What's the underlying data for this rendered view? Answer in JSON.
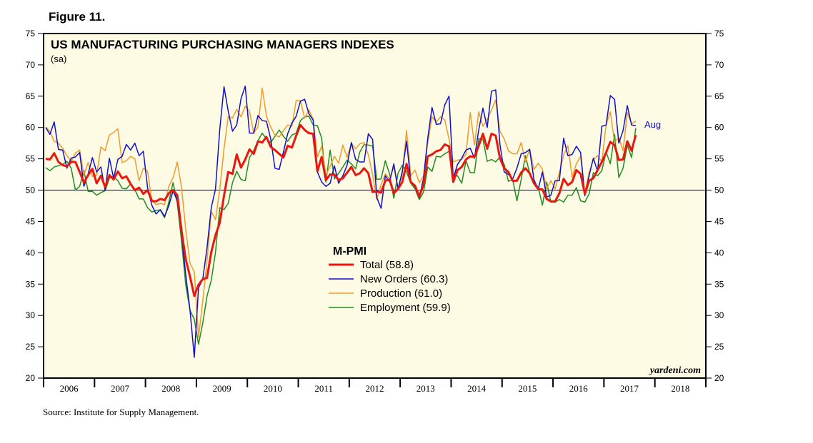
{
  "figure_label": "Figure 11.",
  "source": "Source: Institute for Supply Management.",
  "colors": {
    "plot_bg": "#fdfbe3",
    "total": "#e8170f",
    "new_orders": "#1111cc",
    "production": "#f29a2e",
    "employment": "#228b22",
    "ref_line": "#000000"
  },
  "chart_data": {
    "type": "line",
    "title": "US MANUFACTURING PURCHASING MANAGERS INDEXES",
    "subtitle": "(sa)",
    "credit": "yardeni.com",
    "end_label": "Aug",
    "legend": {
      "title": "M-PMI",
      "placement": "center"
    },
    "x_start": "2006-01",
    "x_end": "2018-12",
    "ylim": [
      20,
      75
    ],
    "yticks": [
      20,
      25,
      30,
      35,
      40,
      45,
      50,
      55,
      60,
      65,
      70,
      75
    ],
    "year_labels": [
      "2006",
      "2007",
      "2008",
      "2009",
      "2010",
      "2011",
      "2012",
      "2013",
      "2014",
      "2015",
      "2016",
      "2017",
      "2018"
    ],
    "reference_line": 50,
    "grid": false,
    "series": [
      {
        "name": "Total",
        "label": "Total (58.8)",
        "color": "#e8170f",
        "width": 3,
        "values": [
          55.0,
          54.9,
          55.9,
          54.5,
          54.0,
          53.8,
          54.5,
          54.5,
          52.9,
          51.2,
          52.4,
          53.4,
          51.1,
          52.3,
          50.5,
          52.4,
          51.7,
          53.0,
          51.9,
          52.2,
          51.0,
          50.0,
          50.4,
          49.4,
          50.0,
          48.3,
          48.2,
          48.6,
          48.4,
          49.5,
          50.0,
          49.2,
          43.5,
          38.9,
          36.2,
          33.1,
          34.9,
          35.8,
          36.0,
          40.1,
          42.8,
          44.8,
          49.1,
          52.9,
          52.6,
          55.7,
          53.6,
          54.9,
          56.5,
          55.8,
          57.8,
          57.6,
          58.5,
          56.9,
          56.4,
          55.8,
          55.2,
          57.1,
          56.8,
          58.7,
          60.4,
          59.6,
          59.1,
          59.0,
          53.0,
          55.3,
          51.6,
          52.5,
          52.5,
          51.6,
          51.9,
          52.8,
          53.7,
          52.4,
          52.7,
          53.5,
          52.7,
          49.7,
          49.8,
          49.6,
          51.5,
          51.7,
          49.5,
          50.2,
          51.3,
          54.2,
          51.3,
          50.7,
          49.0,
          50.9,
          55.4,
          55.7,
          56.2,
          56.4,
          57.3,
          57.0,
          51.3,
          53.2,
          53.7,
          54.9,
          55.4,
          55.3,
          57.1,
          59.0,
          56.6,
          59.0,
          58.7,
          55.1,
          53.5,
          52.9,
          51.5,
          51.5,
          52.8,
          53.5,
          52.7,
          51.1,
          50.2,
          50.1,
          48.6,
          48.2,
          48.2,
          49.5,
          51.8,
          50.8,
          51.3,
          53.2,
          52.6,
          49.4,
          51.5,
          51.9,
          53.2,
          54.5,
          56.0,
          57.7,
          57.2,
          54.8,
          54.9,
          57.8,
          56.3,
          58.8
        ]
      },
      {
        "name": "New Orders",
        "label": "New Orders (60.3)",
        "color": "#1111cc",
        "width": 1.5,
        "values": [
          60.0,
          58.9,
          60.9,
          56.5,
          56.4,
          53.5,
          55.1,
          55.3,
          56.0,
          50.6,
          52.6,
          55.2,
          52.9,
          53.7,
          50.0,
          55.1,
          51.9,
          54.9,
          55.4,
          57.3,
          56.4,
          57.5,
          55.5,
          56.2,
          50.4,
          47.6,
          46.2,
          46.9,
          45.8,
          47.5,
          49.9,
          48.3,
          42.9,
          36.4,
          30.8,
          23.3,
          34.4,
          35.8,
          40.8,
          47.2,
          50.2,
          59.7,
          66.5,
          62.6,
          59.4,
          60.4,
          64.6,
          66.6,
          59.1,
          59.1,
          61.9,
          61.1,
          61.0,
          58.2,
          53.5,
          53.3,
          56.1,
          59.0,
          60.7,
          61.8,
          64.2,
          64.5,
          62.2,
          61.2,
          52.9,
          51.3,
          50.6,
          51.1,
          53.9,
          51.1,
          52.3,
          54.0,
          57.6,
          54.9,
          54.5,
          54.5,
          59.0,
          58.1,
          48.8,
          47.1,
          52.3,
          51.3,
          54.2,
          50.2,
          53.0,
          57.8,
          51.4,
          50.5,
          48.8,
          51.9,
          58.3,
          63.2,
          60.5,
          60.6,
          63.6,
          65.0,
          51.9,
          54.1,
          55.1,
          56.4,
          56.7,
          55.1,
          59.6,
          63.1,
          60.0,
          65.8,
          66.0,
          57.3,
          52.9,
          52.5,
          51.8,
          53.5,
          55.8,
          56.0,
          56.5,
          51.7,
          50.1,
          52.9,
          48.9,
          49.2,
          51.5,
          51.5,
          58.3,
          55.5,
          55.7,
          57.0,
          56.0,
          49.1,
          52.3,
          55.1,
          53.0,
          60.2,
          60.4,
          65.1,
          64.5,
          57.5,
          59.5,
          63.5,
          60.4,
          60.3
        ]
      },
      {
        "name": "Production",
        "label": "Production (61.0)",
        "color": "#f29a2e",
        "width": 1.5,
        "values": [
          60.1,
          59.4,
          57.8,
          57.5,
          56.7,
          55.5,
          54.6,
          55.9,
          56.4,
          52.4,
          54.4,
          52.2,
          52.4,
          56.9,
          56.3,
          58.8,
          59.2,
          59.8,
          54.4,
          54.7,
          55.4,
          55.0,
          51.5,
          53.5,
          53.0,
          48.3,
          47.7,
          47.9,
          47.7,
          50.6,
          52.0,
          54.5,
          50.4,
          43.6,
          38.3,
          37.0,
          26.5,
          32.3,
          38.7,
          46.6,
          45.3,
          50.1,
          56.6,
          61.8,
          61.5,
          62.9,
          61.7,
          63.4,
          62.6,
          59.1,
          60.1,
          66.3,
          61.8,
          60.1,
          58.8,
          58.5,
          59.5,
          60.4,
          60.2,
          64.3,
          64.3,
          61.5,
          62.8,
          61.3,
          55.3,
          57.0,
          52.4,
          53.8,
          55.4,
          54.3,
          57.2,
          55.2,
          57.5,
          56.6,
          57.4,
          57.6,
          55.6,
          52.5,
          48.5,
          50.9,
          52.6,
          51.8,
          53.7,
          50.1,
          52.5,
          59.5,
          52.3,
          53.2,
          51.2,
          52.3,
          57.6,
          61.7,
          60.9,
          61.7,
          61.2,
          58.2,
          54.5,
          54.8,
          54.9,
          55.7,
          62.4,
          57.2,
          62.5,
          60.2,
          61.3,
          62.8,
          64.4,
          59.4,
          58.2,
          56.3,
          55.8,
          55.8,
          57.6,
          54.5,
          56.6,
          53.3,
          54.3,
          53.4,
          50.2,
          51.5,
          50.2,
          52.8,
          55.6,
          57.1,
          52.1,
          54.2,
          55.4,
          49.6,
          52.8,
          54.9,
          55.5,
          54.5,
          60.4,
          62.5,
          57.6,
          58.4,
          56.3,
          62.4,
          60.6,
          61.0
        ]
      },
      {
        "name": "Employment",
        "label": "Employment (59.9)",
        "color": "#228b22",
        "width": 1.5,
        "values": [
          53.6,
          53.1,
          53.7,
          53.9,
          54.1,
          54.6,
          53.5,
          50.0,
          50.6,
          53.1,
          49.8,
          49.8,
          49.2,
          49.6,
          49.9,
          51.9,
          52.2,
          51.5,
          50.3,
          50.2,
          51.0,
          50.1,
          48.6,
          48.6,
          47.2,
          46.5,
          46.8,
          46.8,
          45.6,
          48.1,
          51.2,
          47.9,
          41.8,
          34.8,
          30.8,
          29.4,
          25.4,
          28.8,
          33.1,
          35.6,
          40.1,
          47.2,
          46.9,
          47.9,
          51.2,
          53.0,
          51.7,
          51.5,
          55.2,
          56.3,
          57.9,
          59.1,
          58.2,
          57.6,
          58.6,
          59.6,
          58.6,
          57.8,
          58.8,
          59.1,
          61.1,
          61.7,
          61.8,
          60.4,
          60.3,
          58.3,
          51.3,
          56.4,
          51.8,
          52.7,
          53.7,
          54.8,
          54.2,
          53.4,
          56.1,
          57.3,
          57.2,
          57.0,
          51.7,
          51.8,
          54.7,
          52.6,
          48.7,
          52.7,
          54.0,
          52.9,
          51.1,
          50.2,
          48.5,
          49.7,
          53.7,
          53.0,
          55.4,
          55.3,
          55.8,
          56.2,
          52.3,
          52.3,
          51.1,
          54.7,
          52.8,
          52.8,
          58.2,
          58.1,
          54.6,
          54.9,
          54.5,
          55.3,
          54.1,
          51.4,
          51.7,
          48.3,
          51.7,
          55.5,
          52.7,
          51.2,
          50.5,
          47.6,
          51.3,
          48.1,
          48.1,
          48.5,
          48.1,
          49.2,
          49.2,
          50.4,
          48.3,
          48.1,
          49.4,
          52.8,
          52.3,
          53.1,
          56.1,
          54.2,
          58.9,
          52.0,
          53.5,
          57.2,
          55.2,
          59.9
        ]
      }
    ]
  }
}
